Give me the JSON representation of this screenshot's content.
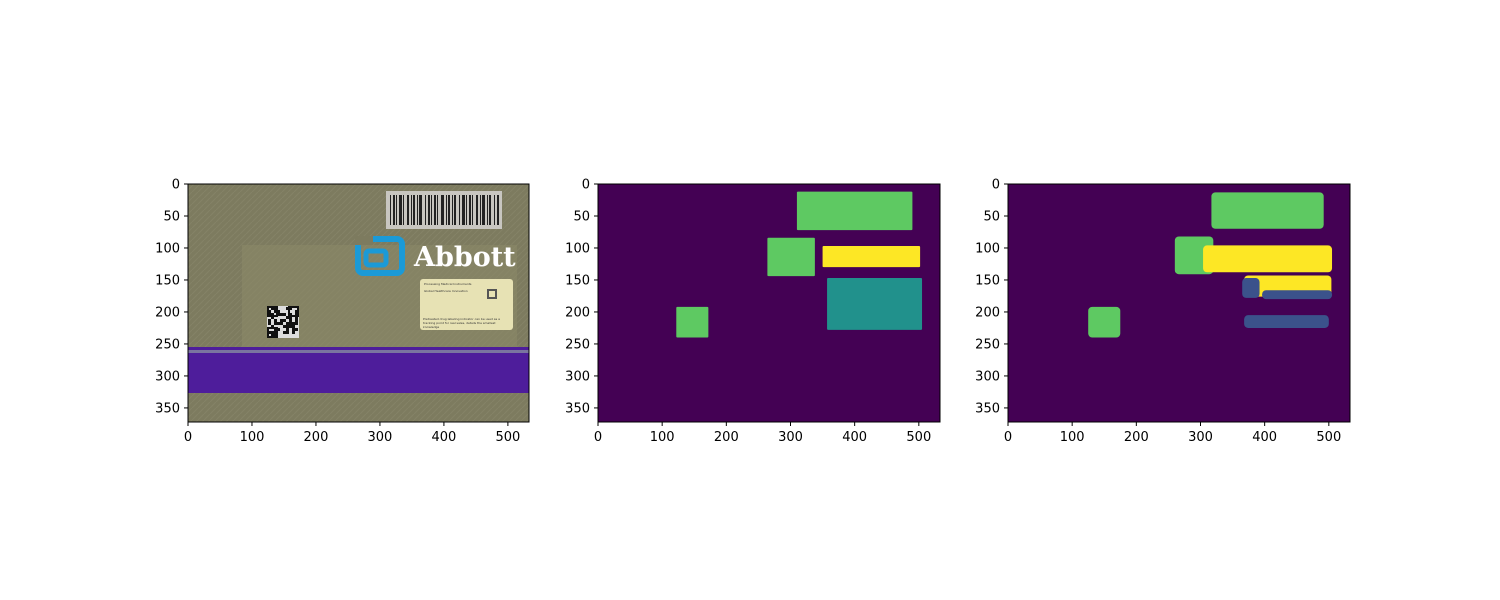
{
  "chart_data": [
    {
      "type": "image",
      "panel": "photo",
      "title": "",
      "xlabel": "",
      "ylabel": "",
      "xlim": [
        0,
        533
      ],
      "ylim": [
        372,
        0
      ],
      "x_ticks": [
        0,
        100,
        200,
        300,
        400,
        500
      ],
      "y_ticks": [
        0,
        50,
        100,
        150,
        200,
        250,
        300,
        350
      ],
      "logo_text": "Abbott",
      "label_lines": [
        "Processing Medical Instruments",
        "Global Healthcare Innovation",
        "Pretreated drug labeling indicator can be used as a tracking point for real sales, details the smallest knowledge"
      ],
      "colors": {
        "background": "#7d7b5f",
        "stripe": "#4e1d9b",
        "logo": "#1b9ad7"
      }
    },
    {
      "type": "heatmap",
      "panel": "ground-truth-mask",
      "title": "",
      "xlim": [
        0,
        533
      ],
      "ylim": [
        372,
        0
      ],
      "x_ticks": [
        0,
        100,
        200,
        300,
        400,
        500
      ],
      "y_ticks": [
        0,
        50,
        100,
        150,
        200,
        250,
        300,
        350
      ],
      "colormap": "viridis",
      "background_color": "#440154",
      "regions": [
        {
          "x": [
            310,
            490
          ],
          "y": [
            12,
            72
          ],
          "color": "#5ec962"
        },
        {
          "x": [
            264,
            338
          ],
          "y": [
            84,
            144
          ],
          "color": "#5ec962"
        },
        {
          "x": [
            350,
            502
          ],
          "y": [
            97,
            130
          ],
          "color": "#fde725"
        },
        {
          "x": [
            357,
            505
          ],
          "y": [
            147,
            228
          ],
          "color": "#21918c"
        },
        {
          "x": [
            122,
            172
          ],
          "y": [
            192,
            240
          ],
          "color": "#5ec962"
        }
      ]
    },
    {
      "type": "heatmap",
      "panel": "predicted-mask",
      "title": "",
      "xlim": [
        0,
        533
      ],
      "ylim": [
        372,
        0
      ],
      "x_ticks": [
        0,
        100,
        200,
        300,
        400,
        500
      ],
      "y_ticks": [
        0,
        50,
        100,
        150,
        200,
        250,
        300,
        350
      ],
      "colormap": "viridis",
      "background_color": "#440154",
      "regions": [
        {
          "x": [
            317,
            492
          ],
          "y": [
            13,
            70
          ],
          "color": "#5ec962"
        },
        {
          "x": [
            260,
            320
          ],
          "y": [
            82,
            141
          ],
          "color": "#5ec962"
        },
        {
          "x": [
            304,
            505
          ],
          "y": [
            96,
            138
          ],
          "color": "#fde725"
        },
        {
          "x": [
            368,
            504
          ],
          "y": [
            143,
            176
          ],
          "color": "#fde725"
        },
        {
          "x": [
            365,
            392
          ],
          "y": [
            147,
            178
          ],
          "color": "#3b528b"
        },
        {
          "x": [
            396,
            505
          ],
          "y": [
            166,
            180
          ],
          "color": "#3b528b"
        },
        {
          "x": [
            368,
            500
          ],
          "y": [
            205,
            225
          ],
          "color": "#3b528b"
        },
        {
          "x": [
            125,
            175
          ],
          "y": [
            192,
            240
          ],
          "color": "#5ec962"
        }
      ]
    }
  ]
}
